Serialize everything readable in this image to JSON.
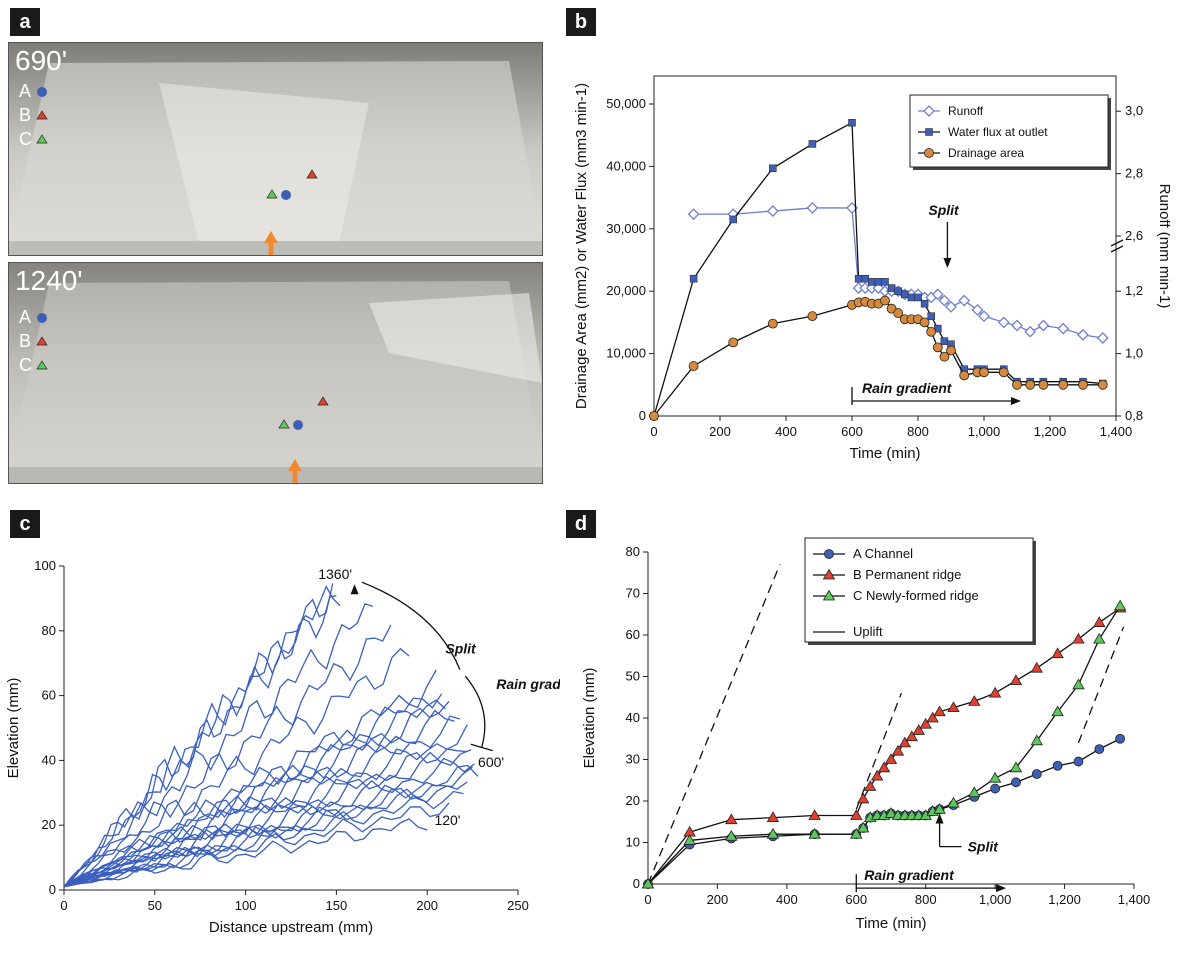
{
  "panels": {
    "a": {
      "tag": "a",
      "photos": [
        {
          "time_label": "690'",
          "legend": [
            {
              "label": "A",
              "marker": "circle",
              "color": "#3f5fb5"
            },
            {
              "label": "B",
              "marker": "triangle",
              "color": "#e04030"
            },
            {
              "label": "C",
              "marker": "triangle",
              "color": "#5cc85c"
            }
          ]
        },
        {
          "time_label": "1240'",
          "legend": [
            {
              "label": "A",
              "marker": "circle",
              "color": "#3f5fb5"
            },
            {
              "label": "B",
              "marker": "triangle",
              "color": "#e04030"
            },
            {
              "label": "C",
              "marker": "triangle",
              "color": "#5cc85c"
            }
          ]
        }
      ],
      "arrow_color": "#f08a30"
    },
    "b": {
      "tag": "b"
    },
    "c": {
      "tag": "c"
    },
    "d": {
      "tag": "d"
    }
  },
  "chart_data": [
    {
      "panel": "b",
      "type": "line",
      "xlabel": "Time (min)",
      "ylabel": "Drainage Area (mm2) or Water Flux (mm3 min-1)",
      "ylabel_right": "Runoff (mm min-1)",
      "xlim": [
        0,
        1400
      ],
      "ylim": [
        0,
        55000
      ],
      "x_ticks": [
        "0",
        "200",
        "400",
        "600",
        "800",
        "1,000",
        "1,200",
        "1,400"
      ],
      "y_ticks": [
        "0",
        "10,000",
        "20,000",
        "30,000",
        "40,000",
        "50,000"
      ],
      "y2_ticks": [
        "0,8",
        "1,0",
        "1,2",
        "2,6",
        "2,8",
        "3,0"
      ],
      "legend": {
        "position": "top-right"
      },
      "annotations": {
        "split": "Split",
        "rain_gradient": "Rain gradient"
      },
      "series": [
        {
          "name": "Runoff",
          "axis": "right",
          "color": "#6f7fd0",
          "marker": "diamond-open",
          "x": [
            120,
            240,
            360,
            480,
            600,
            620,
            640,
            660,
            680,
            700,
            720,
            740,
            760,
            780,
            800,
            820,
            840,
            860,
            880,
            900,
            940,
            980,
            1000,
            1060,
            1100,
            1140,
            1180,
            1240,
            1300,
            1360
          ],
          "y": [
            2.67,
            2.67,
            2.68,
            2.69,
            2.69,
            1.21,
            1.21,
            1.21,
            1.21,
            1.2,
            1.2,
            1.2,
            1.19,
            1.19,
            1.19,
            1.18,
            1.18,
            1.19,
            1.17,
            1.15,
            1.17,
            1.14,
            1.12,
            1.1,
            1.09,
            1.07,
            1.09,
            1.08,
            1.06,
            1.05
          ]
        },
        {
          "name": "Water flux at outlet",
          "axis": "left",
          "color": "#3f5fb5",
          "marker": "square",
          "x": [
            0,
            120,
            240,
            360,
            480,
            600,
            620,
            640,
            660,
            680,
            700,
            720,
            740,
            760,
            780,
            800,
            820,
            840,
            860,
            880,
            900,
            940,
            980,
            1000,
            1060,
            1100,
            1140,
            1180,
            1240,
            1300,
            1360
          ],
          "y": [
            0,
            22000,
            31500,
            39700,
            43600,
            47000,
            22000,
            22000,
            21500,
            21500,
            21500,
            20500,
            20000,
            19500,
            19000,
            19000,
            18000,
            16000,
            14000,
            12000,
            11500,
            7500,
            7500,
            7500,
            7500,
            5500,
            5500,
            5500,
            5500,
            5500,
            5200
          ]
        },
        {
          "name": "Drainage area",
          "axis": "left",
          "color": "#d88a3c",
          "marker": "circle",
          "x": [
            0,
            120,
            240,
            360,
            480,
            600,
            620,
            640,
            660,
            680,
            700,
            720,
            740,
            760,
            780,
            800,
            820,
            840,
            860,
            880,
            900,
            940,
            980,
            1000,
            1060,
            1100,
            1140,
            1180,
            1240,
            1300,
            1360
          ],
          "y": [
            0,
            8000,
            11800,
            14800,
            16000,
            17800,
            18200,
            18300,
            18000,
            18000,
            18500,
            17200,
            16500,
            15500,
            15500,
            15500,
            15000,
            13500,
            11000,
            9500,
            10500,
            6500,
            7000,
            7000,
            7000,
            5000,
            5000,
            5000,
            5000,
            5000,
            5000
          ]
        }
      ]
    },
    {
      "panel": "c",
      "type": "line",
      "xlabel": "Distance upstream (mm)",
      "ylabel": "Elevation (mm)",
      "xlim": [
        0,
        250
      ],
      "ylim": [
        0,
        100
      ],
      "x_ticks": [
        "0",
        "50",
        "100",
        "150",
        "200",
        "250"
      ],
      "y_ticks": [
        "0",
        "20",
        "40",
        "60",
        "80",
        "100"
      ],
      "annotations": {
        "top_time": "1360'",
        "mid_time": "600'",
        "bottom_time": "120'",
        "split": "Split",
        "rain_gradient": "Rain gradient"
      },
      "color": "#3a5fbf",
      "profiles": [
        {
          "xmax": 200,
          "ymax": 21
        },
        {
          "xmax": 212,
          "ymax": 26
        },
        {
          "xmax": 220,
          "ymax": 30
        },
        {
          "xmax": 222,
          "ymax": 33
        },
        {
          "xmax": 225,
          "ymax": 35
        },
        {
          "xmax": 228,
          "ymax": 37
        },
        {
          "xmax": 226,
          "ymax": 40
        },
        {
          "xmax": 224,
          "ymax": 43
        },
        {
          "xmax": 222,
          "ymax": 45
        },
        {
          "xmax": 222,
          "ymax": 48
        },
        {
          "xmax": 218,
          "ymax": 51
        },
        {
          "xmax": 215,
          "ymax": 54
        },
        {
          "xmax": 212,
          "ymax": 57
        },
        {
          "xmax": 210,
          "ymax": 59
        },
        {
          "xmax": 208,
          "ymax": 62
        },
        {
          "xmax": 205,
          "ymax": 64
        },
        {
          "xmax": 190,
          "ymax": 73
        },
        {
          "xmax": 180,
          "ymax": 80
        },
        {
          "xmax": 170,
          "ymax": 87
        },
        {
          "xmax": 152,
          "ymax": 94
        },
        {
          "xmax": 148,
          "ymax": 93
        },
        {
          "xmax": 150,
          "ymax": 90
        }
      ]
    },
    {
      "panel": "d",
      "type": "line",
      "xlabel": "Time (min)",
      "ylabel": "Elevation (mm)",
      "xlim": [
        0,
        1400
      ],
      "ylim": [
        0,
        80
      ],
      "x_ticks": [
        "0",
        "200",
        "400",
        "600",
        "800",
        "1,000",
        "1,200",
        "1,400"
      ],
      "y_ticks": [
        "0",
        "10",
        "20",
        "30",
        "40",
        "50",
        "60",
        "70",
        "80"
      ],
      "legend": {
        "position": "top-center"
      },
      "annotations": {
        "split": "Split",
        "rain_gradient": "Rain gradient"
      },
      "series": [
        {
          "name": "A Channel",
          "color": "#3f5fb5",
          "marker": "circle",
          "x": [
            0,
            120,
            240,
            360,
            480,
            600,
            620,
            640,
            660,
            680,
            700,
            720,
            740,
            760,
            780,
            800,
            820,
            840,
            880,
            940,
            1000,
            1060,
            1120,
            1180,
            1240,
            1300,
            1360
          ],
          "y": [
            0,
            9.5,
            11,
            11.5,
            12,
            12,
            13.5,
            16,
            16.5,
            16.5,
            17,
            16.5,
            16.5,
            16.5,
            16.5,
            16.5,
            17.5,
            18,
            19,
            21,
            23,
            24.5,
            26.5,
            28.5,
            29.5,
            32.5,
            35
          ]
        },
        {
          "name": "B Permanent ridge",
          "color": "#e04030",
          "marker": "triangle",
          "x": [
            0,
            120,
            240,
            360,
            480,
            600,
            620,
            640,
            660,
            680,
            700,
            720,
            740,
            760,
            780,
            800,
            820,
            840,
            880,
            940,
            1000,
            1060,
            1120,
            1180,
            1240,
            1300,
            1360
          ],
          "y": [
            0,
            12.5,
            15.5,
            16,
            16.5,
            16.5,
            20.5,
            23.5,
            26,
            28,
            30,
            32,
            34,
            35.5,
            37,
            38.5,
            40,
            41.5,
            42.5,
            44,
            46,
            49,
            52,
            55.5,
            59,
            63,
            66.5
          ]
        },
        {
          "name": "C Newly-formed ridge",
          "color": "#5cc85c",
          "marker": "triangle",
          "x": [
            0,
            120,
            240,
            360,
            480,
            600,
            620,
            640,
            660,
            680,
            700,
            720,
            740,
            760,
            780,
            800,
            820,
            840,
            880,
            940,
            1000,
            1060,
            1120,
            1180,
            1240,
            1300,
            1360
          ],
          "y": [
            0,
            10.5,
            11.5,
            12,
            12,
            12,
            13.5,
            16,
            16.5,
            16.5,
            17,
            16.5,
            16.5,
            16.5,
            16.5,
            16.5,
            17.5,
            18,
            19.5,
            22,
            25.5,
            28,
            34.5,
            41.5,
            48,
            59,
            67
          ]
        },
        {
          "name": "Uplift",
          "color": "#111111",
          "marker": "none",
          "style": "solid-legend, dashed-plot"
        }
      ]
    }
  ]
}
